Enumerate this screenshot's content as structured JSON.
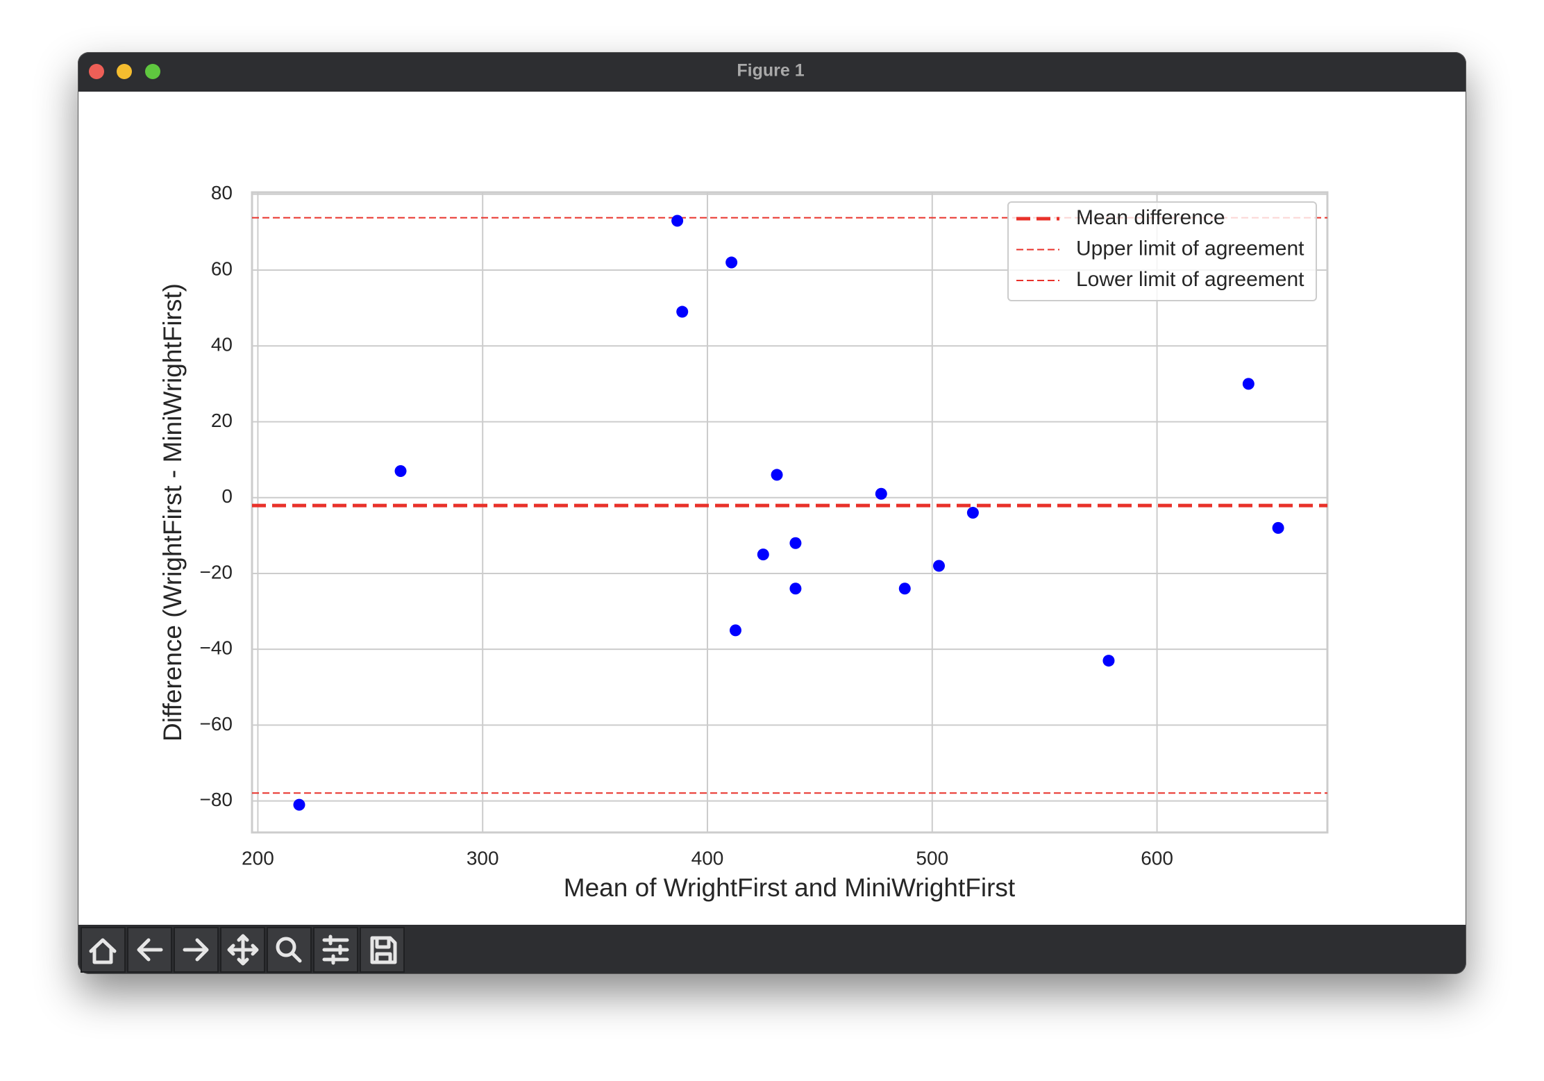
{
  "window": {
    "title": "Figure 1"
  },
  "chart_data": {
    "type": "scatter",
    "x_label": "Mean of WrightFirst and MiniWrightFirst",
    "y_label": "Difference (WrightFirst - MiniWrightFirst)",
    "xlim": [
      197.4,
      675.8
    ],
    "ylim": [
      -88.3,
      80.5
    ],
    "xticks": [
      200,
      300,
      400,
      500,
      600
    ],
    "yticks": [
      {
        "value": -80,
        "label": "−80"
      },
      {
        "value": -60,
        "label": "−60"
      },
      {
        "value": -40,
        "label": "−40"
      },
      {
        "value": -20,
        "label": "−20"
      },
      0,
      20,
      40,
      60,
      80
    ],
    "grid": true,
    "legend": "upper right",
    "series": [
      {
        "color": "#0000ff",
        "x": [
          386.6,
          410.7,
          388.8,
          263.5,
          430.9,
          477.3,
          518.1,
          653.9,
          439.2,
          424.8,
          503.0,
          439.2,
          487.8,
          412.5,
          578.5,
          640.7,
          218.4
        ],
        "values": [
          73,
          62,
          49,
          7,
          6,
          1,
          -4,
          -8,
          -12,
          -15,
          -18,
          -24,
          -24,
          -35,
          -43,
          30,
          -81
        ]
      }
    ],
    "reference_lines": [
      {
        "name": "Mean difference",
        "value": -2.1,
        "color": "#e8312a",
        "style": "thick-dashed"
      },
      {
        "name": "Upper limit of agreement",
        "value": 73.8,
        "color": "#e8312a",
        "style": "dashed"
      },
      {
        "name": "Lower limit of agreement",
        "value": -77.9,
        "color": "#e8312a",
        "style": "dashed"
      }
    ]
  }
}
